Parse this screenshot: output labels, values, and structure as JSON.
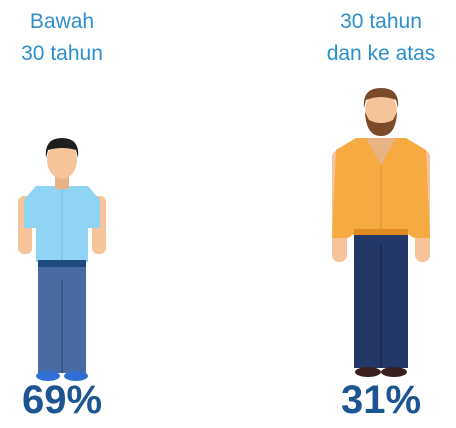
{
  "groups": [
    {
      "label": [
        "Bawah",
        "30 tahun"
      ],
      "value": "69%"
    },
    {
      "label": [
        "30 tahun",
        "dan ke atas"
      ],
      "value": "31%"
    }
  ]
}
